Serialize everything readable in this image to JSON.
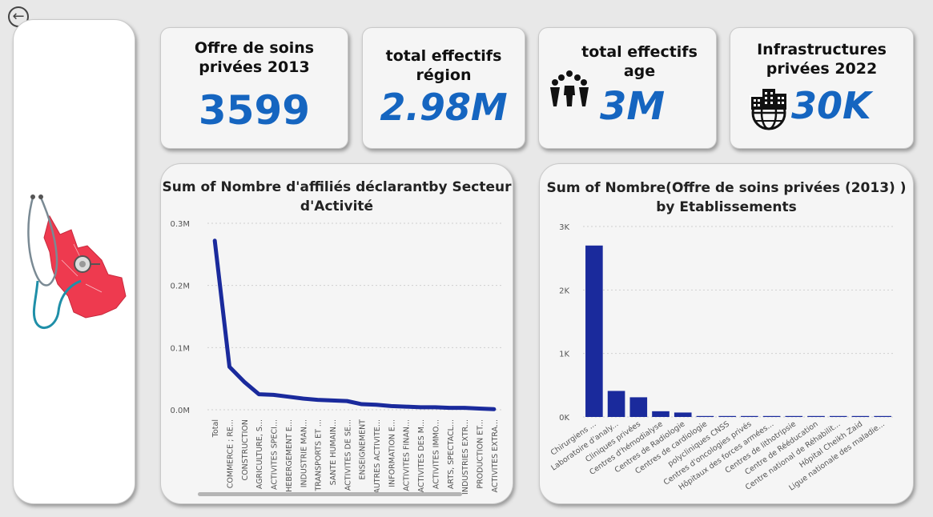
{
  "nav": {
    "back_icon": "arrow-left-icon"
  },
  "kpis": {
    "offre": {
      "title_line1": "Offre de soins",
      "title_line2": "privées 2013",
      "value": "3599"
    },
    "region": {
      "title_line1": "total effectifs",
      "title_line2": "région",
      "value": "2.98M"
    },
    "age": {
      "title_line1": "total effectifs",
      "title_line2": "age",
      "value": "3M",
      "icon": "people-group-icon"
    },
    "infra": {
      "title_line1": "Infrastructures",
      "title_line2": "privées 2022",
      "value": "30K",
      "icon": "building-globe-icon"
    }
  },
  "colors": {
    "accent": "#1565c0",
    "series": "#1a2a9c",
    "map_red": "#ee3a4f"
  },
  "chart_data": [
    {
      "type": "line",
      "title_line1": "Sum of Nombre d'affiliés déclarantby Secteur",
      "title_line2": "d'Activité",
      "categories": [
        "Total",
        "COMMERCE ; RE...",
        "CONSTRUCTION",
        "AGRICULTURE, S...",
        "ACTIVITES SPECI...",
        "HEBERGEMENT E...",
        "INDUSTRIE MAN...",
        "TRANSPORTS ET ...",
        "SANTE HUMAIN...",
        "ACTIVITES DE SE...",
        "ENSEIGNEMENT",
        "AUTRES ACTIVITE...",
        "INFORMATION E...",
        "ACTIVITES FINAN...",
        "ACTIVITES DES M...",
        "ACTIVITES IMMO...",
        "ARTS, SPECTACL...",
        "INDUSTRIES EXTR...",
        "PRODUCTION ET...",
        "ACTIVITES EXTRA..."
      ],
      "values": [
        0.272,
        0.069,
        0.045,
        0.025,
        0.024,
        0.021,
        0.018,
        0.016,
        0.015,
        0.014,
        0.009,
        0.008,
        0.006,
        0.005,
        0.004,
        0.004,
        0.003,
        0.003,
        0.002,
        0.001
      ],
      "y_ticks": [
        "0.3M",
        "0.2M",
        "0.1M",
        "0.0M"
      ],
      "y_tick_values": [
        0.3,
        0.2,
        0.1,
        0.0
      ],
      "ylim": [
        0,
        0.3
      ],
      "unit": "M",
      "grid": true
    },
    {
      "type": "bar",
      "title_line1": "Sum of Nombre(Offre de soins privées (2013) )",
      "title_line2": "by Etablissements",
      "categories": [
        "Chirurgiens ...",
        "Laboratoire d'analy...",
        "Cliniques privées",
        "Centres d'hémodialyse",
        "Centres de Radiologie",
        "Centres de cardiologie",
        "polycliniques CNSS",
        "Centres d'oncologies privés",
        "Hôpitaux des forces armées...",
        "Centres de lithotripsie",
        "Centre de Rééducation",
        "Centre national de Réhabilit...",
        "Hôpital Cheikh Zaid",
        "Ligue nationale des maladie..."
      ],
      "values": [
        2700,
        410,
        310,
        90,
        70,
        10,
        8,
        6,
        5,
        4,
        3,
        3,
        2,
        2
      ],
      "y_ticks": [
        "3K",
        "2K",
        "1K",
        "0K"
      ],
      "y_tick_values": [
        3000,
        2000,
        1000,
        0
      ],
      "ylim": [
        0,
        3000
      ],
      "grid": true
    }
  ]
}
